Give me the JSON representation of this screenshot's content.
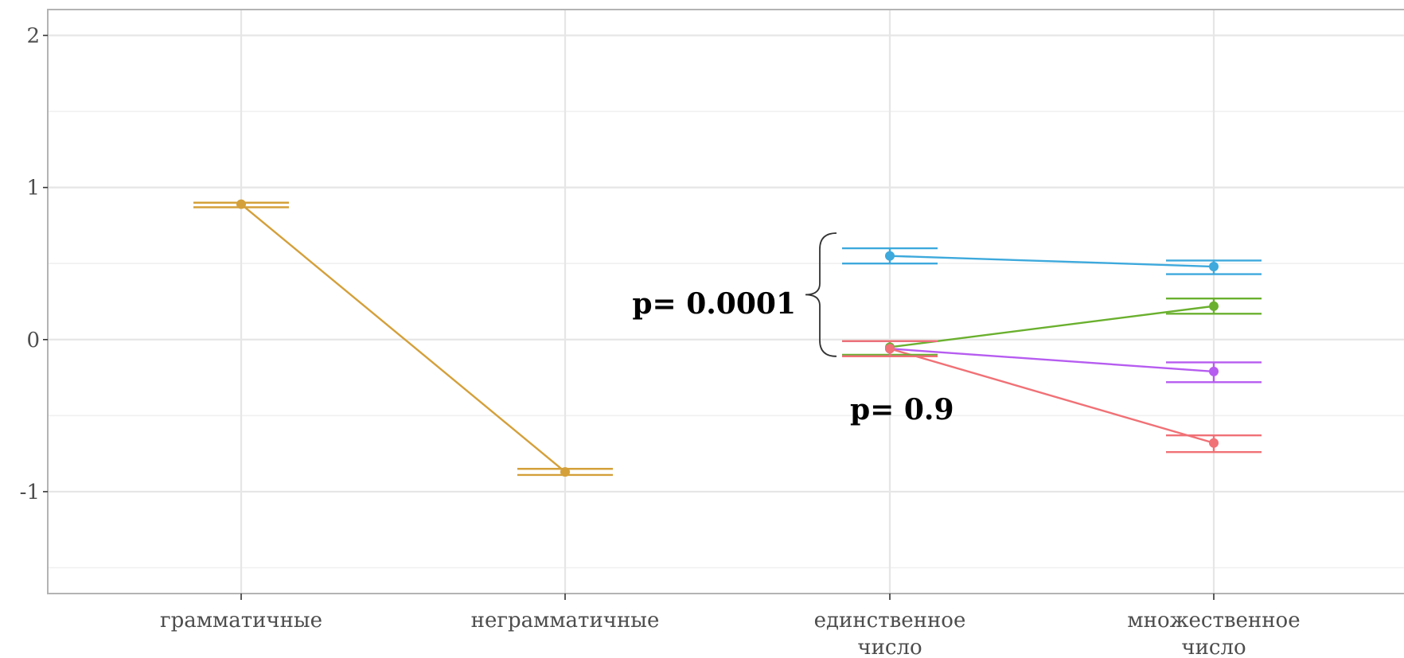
{
  "chart_data": {
    "type": "line",
    "categories": [
      "грамматичные",
      "неграмматичные",
      "единственное\nчисло",
      "множественное\nчисло"
    ],
    "ylim": [
      -1.67,
      2.17
    ],
    "y_ticks": [
      -1,
      0,
      1,
      2
    ],
    "grid": true,
    "panels": [
      {
        "x": [
          "грамматичные",
          "неграмматичные"
        ],
        "series": [
          {
            "color": "#d4a03a",
            "values": [
              0.89,
              -0.87
            ],
            "ci_lower": [
              0.87,
              -0.89
            ],
            "ci_upper": [
              0.9,
              -0.85
            ]
          }
        ]
      },
      {
        "x": [
          "единственное\nчисло",
          "множественное\nчисло"
        ],
        "series": [
          {
            "color": "#3da9dc",
            "values": [
              0.55,
              0.48
            ],
            "ci_lower": [
              0.5,
              0.43
            ],
            "ci_upper": [
              0.6,
              0.52
            ]
          },
          {
            "color": "#6ab02e",
            "values": [
              -0.05,
              0.22
            ],
            "ci_lower": [
              -0.1,
              0.17
            ],
            "ci_upper": [
              -0.01,
              0.27
            ]
          },
          {
            "color": "#b65cf0",
            "values": [
              -0.06,
              -0.21
            ],
            "ci_lower": [
              -0.11,
              -0.28
            ],
            "ci_upper": [
              -0.01,
              -0.15
            ]
          },
          {
            "color": "#f07176",
            "values": [
              -0.06,
              -0.68
            ],
            "ci_lower": [
              -0.11,
              -0.74
            ],
            "ci_upper": [
              -0.01,
              -0.63
            ]
          }
        ]
      }
    ],
    "annotations": [
      {
        "text": "p= 0.0001",
        "brace_from": -0.11,
        "brace_to": 0.7
      },
      {
        "text": "p= 0.9"
      }
    ]
  },
  "colors": {
    "panel_border": "#b3b3b3",
    "grid": "#e6e6e6",
    "tick_text": "#4d4d4d"
  }
}
